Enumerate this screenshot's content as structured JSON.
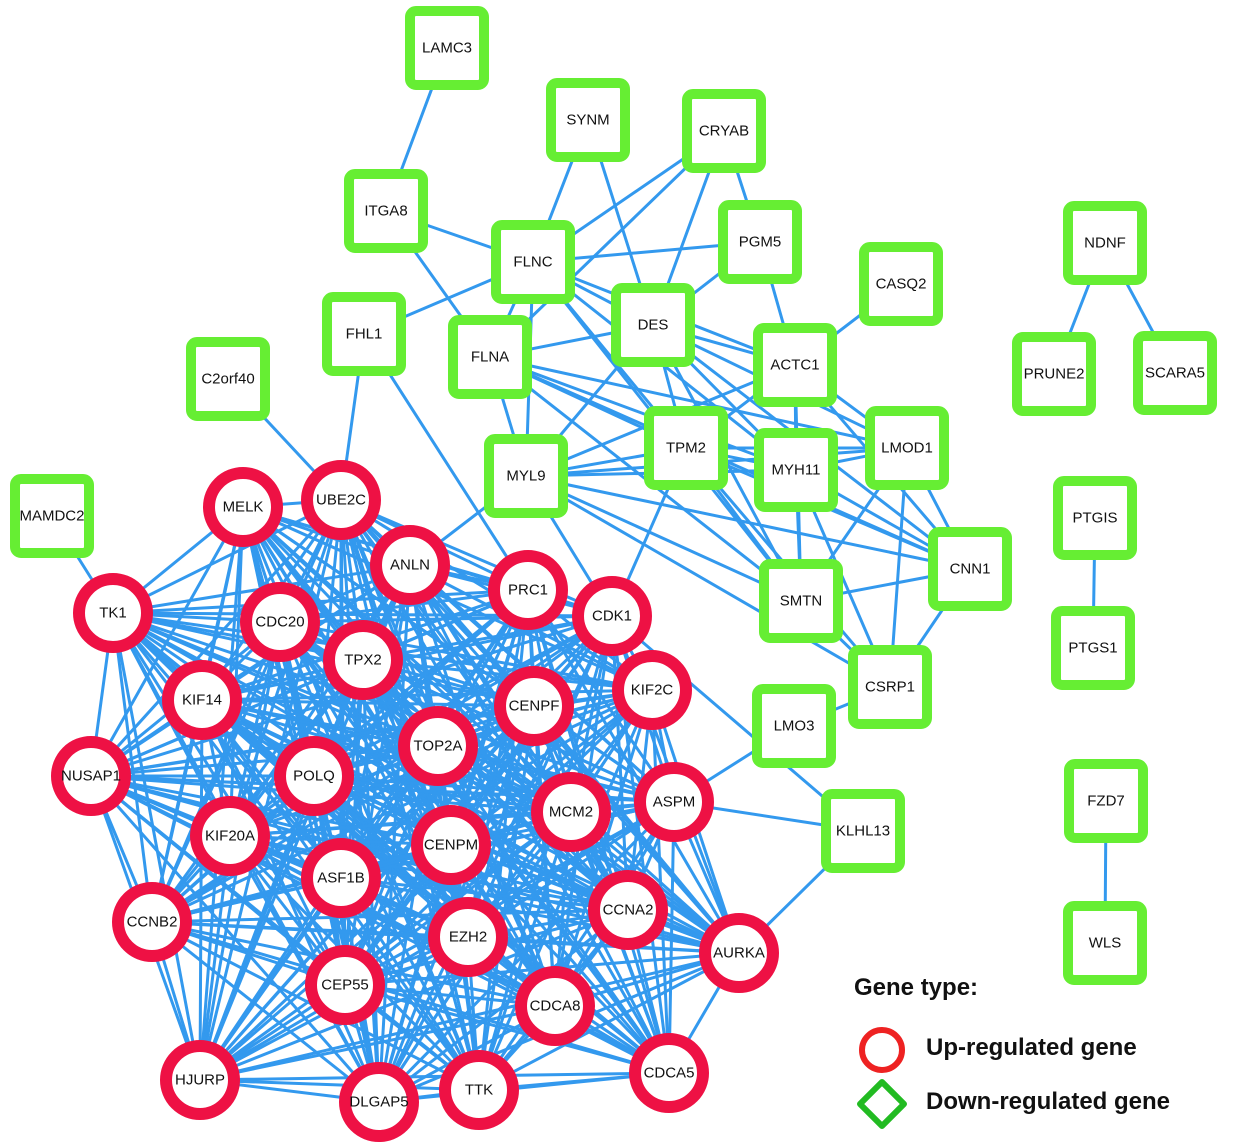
{
  "colors": {
    "up_regulated": "#ee1144",
    "down_regulated": "#66ee33",
    "edge": "#3399ee"
  },
  "legend": {
    "title": "Gene type:",
    "items": [
      {
        "label": "Up-regulated gene",
        "shape": "circle-icon",
        "color": "#ee2222"
      },
      {
        "label": "Down-regulated gene",
        "shape": "diamond-icon",
        "color": "#22bb22"
      }
    ]
  },
  "nodes": [
    {
      "id": "LAMC3",
      "type": "down"
    },
    {
      "id": "SYNM",
      "type": "down"
    },
    {
      "id": "CRYAB",
      "type": "down"
    },
    {
      "id": "ITGA8",
      "type": "down"
    },
    {
      "id": "FLNC",
      "type": "down"
    },
    {
      "id": "PGM5",
      "type": "down"
    },
    {
      "id": "CASQ2",
      "type": "down"
    },
    {
      "id": "NDNF",
      "type": "down"
    },
    {
      "id": "FHL1",
      "type": "down"
    },
    {
      "id": "DES",
      "type": "down"
    },
    {
      "id": "FLNA",
      "type": "down"
    },
    {
      "id": "ACTC1",
      "type": "down"
    },
    {
      "id": "C2orf40",
      "type": "down"
    },
    {
      "id": "PRUNE2",
      "type": "down"
    },
    {
      "id": "SCARA5",
      "type": "down"
    },
    {
      "id": "TPM2",
      "type": "down"
    },
    {
      "id": "LMOD1",
      "type": "down"
    },
    {
      "id": "MYL9",
      "type": "down"
    },
    {
      "id": "MYH11",
      "type": "down"
    },
    {
      "id": "MAMDC2",
      "type": "down"
    },
    {
      "id": "PTGIS",
      "type": "down"
    },
    {
      "id": "CNN1",
      "type": "down"
    },
    {
      "id": "SMTN",
      "type": "down"
    },
    {
      "id": "PTGS1",
      "type": "down"
    },
    {
      "id": "CSRP1",
      "type": "down"
    },
    {
      "id": "LMO3",
      "type": "down"
    },
    {
      "id": "FZD7",
      "type": "down"
    },
    {
      "id": "KLHL13",
      "type": "down"
    },
    {
      "id": "WLS",
      "type": "down"
    },
    {
      "id": "MELK",
      "type": "up"
    },
    {
      "id": "UBE2C",
      "type": "up"
    },
    {
      "id": "ANLN",
      "type": "up"
    },
    {
      "id": "PRC1",
      "type": "up"
    },
    {
      "id": "CDK1",
      "type": "up"
    },
    {
      "id": "TK1",
      "type": "up"
    },
    {
      "id": "CDC20",
      "type": "up"
    },
    {
      "id": "TPX2",
      "type": "up"
    },
    {
      "id": "KIF2C",
      "type": "up"
    },
    {
      "id": "KIF14",
      "type": "up"
    },
    {
      "id": "CENPF",
      "type": "up"
    },
    {
      "id": "TOP2A",
      "type": "up"
    },
    {
      "id": "NUSAP1",
      "type": "up"
    },
    {
      "id": "POLQ",
      "type": "up"
    },
    {
      "id": "ASPM",
      "type": "up"
    },
    {
      "id": "MCM2",
      "type": "up"
    },
    {
      "id": "KIF20A",
      "type": "up"
    },
    {
      "id": "CENPM",
      "type": "up"
    },
    {
      "id": "ASF1B",
      "type": "up"
    },
    {
      "id": "CCNA2",
      "type": "up"
    },
    {
      "id": "CCNB2",
      "type": "up"
    },
    {
      "id": "EZH2",
      "type": "up"
    },
    {
      "id": "AURKA",
      "type": "up"
    },
    {
      "id": "CEP55",
      "type": "up"
    },
    {
      "id": "CDCA8",
      "type": "up"
    },
    {
      "id": "HJURP",
      "type": "up"
    },
    {
      "id": "CDCA5",
      "type": "up"
    },
    {
      "id": "TTK",
      "type": "up"
    },
    {
      "id": "DLGAP5",
      "type": "up"
    }
  ],
  "edges": [
    [
      "LAMC3",
      "ITGA8"
    ],
    [
      "SYNM",
      "FLNC"
    ],
    [
      "SYNM",
      "DES"
    ],
    [
      "CRYAB",
      "FLNC"
    ],
    [
      "CRYAB",
      "DES"
    ],
    [
      "CRYAB",
      "PGM5"
    ],
    [
      "CRYAB",
      "FLNA"
    ],
    [
      "ITGA8",
      "FLNC"
    ],
    [
      "ITGA8",
      "FLNA"
    ],
    [
      "FLNC",
      "PGM5"
    ],
    [
      "FLNC",
      "DES"
    ],
    [
      "FLNC",
      "FHL1"
    ],
    [
      "FLNC",
      "FLNA"
    ],
    [
      "FLNC",
      "ACTC1"
    ],
    [
      "FLNC",
      "TPM2"
    ],
    [
      "FLNC",
      "MYL9"
    ],
    [
      "FLNC",
      "MYH11"
    ],
    [
      "FLNC",
      "SMTN"
    ],
    [
      "PGM5",
      "ACTC1"
    ],
    [
      "PGM5",
      "DES"
    ],
    [
      "CASQ2",
      "ACTC1"
    ],
    [
      "NDNF",
      "PRUNE2"
    ],
    [
      "NDNF",
      "SCARA5"
    ],
    [
      "DES",
      "ACTC1"
    ],
    [
      "DES",
      "TPM2"
    ],
    [
      "DES",
      "MYH11"
    ],
    [
      "DES",
      "LMOD1"
    ],
    [
      "DES",
      "CNN1"
    ],
    [
      "DES",
      "SMTN"
    ],
    [
      "DES",
      "MYL9"
    ],
    [
      "DES",
      "FLNA"
    ],
    [
      "FLNA",
      "MYL9"
    ],
    [
      "FLNA",
      "TPM2"
    ],
    [
      "FLNA",
      "MYH11"
    ],
    [
      "FLNA",
      "SMTN"
    ],
    [
      "FLNA",
      "LMOD1"
    ],
    [
      "FLNA",
      "CNN1"
    ],
    [
      "ACTC1",
      "TPM2"
    ],
    [
      "ACTC1",
      "MYH11"
    ],
    [
      "ACTC1",
      "LMOD1"
    ],
    [
      "ACTC1",
      "CNN1"
    ],
    [
      "ACTC1",
      "SMTN"
    ],
    [
      "ACTC1",
      "MYL9"
    ],
    [
      "TPM2",
      "MYL9"
    ],
    [
      "TPM2",
      "MYH11"
    ],
    [
      "TPM2",
      "LMOD1"
    ],
    [
      "TPM2",
      "SMTN"
    ],
    [
      "TPM2",
      "CNN1"
    ],
    [
      "TPM2",
      "CSRP1"
    ],
    [
      "TPM2",
      "CDK1"
    ],
    [
      "MYL9",
      "MYH11"
    ],
    [
      "MYL9",
      "LMOD1"
    ],
    [
      "MYL9",
      "SMTN"
    ],
    [
      "MYL9",
      "CNN1"
    ],
    [
      "MYL9",
      "CSRP1"
    ],
    [
      "MYL9",
      "ANLN"
    ],
    [
      "MYL9",
      "CDK1"
    ],
    [
      "MYH11",
      "LMOD1"
    ],
    [
      "MYH11",
      "SMTN"
    ],
    [
      "MYH11",
      "CNN1"
    ],
    [
      "MYH11",
      "CSRP1"
    ],
    [
      "LMOD1",
      "SMTN"
    ],
    [
      "LMOD1",
      "CNN1"
    ],
    [
      "LMOD1",
      "CSRP1"
    ],
    [
      "CNN1",
      "SMTN"
    ],
    [
      "CNN1",
      "CSRP1"
    ],
    [
      "SMTN",
      "CSRP1"
    ],
    [
      "CSRP1",
      "LMO3"
    ],
    [
      "PTGIS",
      "PTGS1"
    ],
    [
      "FZD7",
      "WLS"
    ],
    [
      "FHL1",
      "UBE2C"
    ],
    [
      "FHL1",
      "PRC1"
    ],
    [
      "C2orf40",
      "UBE2C"
    ],
    [
      "MAMDC2",
      "TK1"
    ],
    [
      "KLHL13",
      "CDK1"
    ],
    [
      "KLHL13",
      "ASPM"
    ],
    [
      "KLHL13",
      "AURKA"
    ],
    [
      "LMO3",
      "ASPM"
    ]
  ]
}
